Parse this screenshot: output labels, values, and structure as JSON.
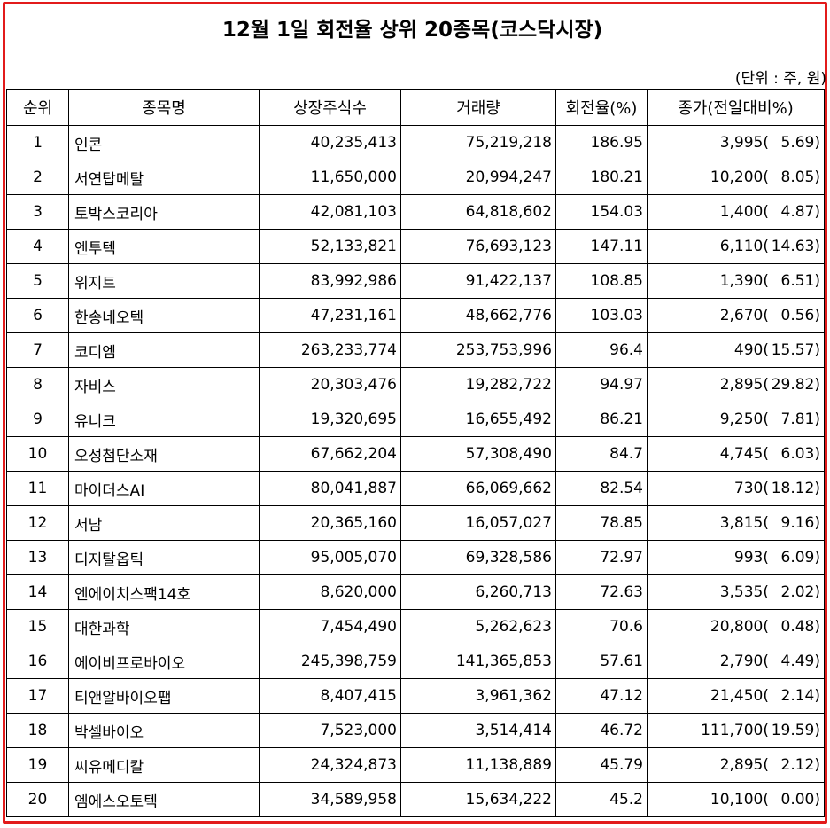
{
  "title": "12월 1일 회전율 상위 20종목(코스닥시장)",
  "unit_note": "(단위 : 주, 원)",
  "headers": [
    "순위",
    "종목명",
    "상장주식수",
    "거래량",
    "회전율(%)",
    "종가(전일대비%)"
  ],
  "rows": [
    {
      "rank": "1",
      "name": "인콘",
      "listed": "40,235,413",
      "volume": "75,219,218",
      "turnover": "186.95",
      "price": "3,995(",
      "change": "5.69)"
    },
    {
      "rank": "2",
      "name": "서연탑메탈",
      "listed": "11,650,000",
      "volume": "20,994,247",
      "turnover": "180.21",
      "price": "10,200(",
      "change": "8.05)"
    },
    {
      "rank": "3",
      "name": "토박스코리아",
      "listed": "42,081,103",
      "volume": "64,818,602",
      "turnover": "154.03",
      "price": "1,400(",
      "change": "4.87)"
    },
    {
      "rank": "4",
      "name": "엔투텍",
      "listed": "52,133,821",
      "volume": "76,693,123",
      "turnover": "147.11",
      "price": "6,110(",
      "change": "14.63)"
    },
    {
      "rank": "5",
      "name": "위지트",
      "listed": "83,992,986",
      "volume": "91,422,137",
      "turnover": "108.85",
      "price": "1,390(",
      "change": "6.51)"
    },
    {
      "rank": "6",
      "name": "한송네오텍",
      "listed": "47,231,161",
      "volume": "48,662,776",
      "turnover": "103.03",
      "price": "2,670(",
      "change": "0.56)"
    },
    {
      "rank": "7",
      "name": "코디엠",
      "listed": "263,233,774",
      "volume": "253,753,996",
      "turnover": "96.4",
      "price": "490(",
      "change": "15.57)"
    },
    {
      "rank": "8",
      "name": "자비스",
      "listed": "20,303,476",
      "volume": "19,282,722",
      "turnover": "94.97",
      "price": "2,895(",
      "change": "29.82)"
    },
    {
      "rank": "9",
      "name": "유니크",
      "listed": "19,320,695",
      "volume": "16,655,492",
      "turnover": "86.21",
      "price": "9,250(",
      "change": "7.81)"
    },
    {
      "rank": "10",
      "name": "오성첨단소재",
      "listed": "67,662,204",
      "volume": "57,308,490",
      "turnover": "84.7",
      "price": "4,745(",
      "change": "6.03)"
    },
    {
      "rank": "11",
      "name": "마이더스AI",
      "listed": "80,041,887",
      "volume": "66,069,662",
      "turnover": "82.54",
      "price": "730(",
      "change": "18.12)"
    },
    {
      "rank": "12",
      "name": "서남",
      "listed": "20,365,160",
      "volume": "16,057,027",
      "turnover": "78.85",
      "price": "3,815(",
      "change": "9.16)"
    },
    {
      "rank": "13",
      "name": "디지탈옵틱",
      "listed": "95,005,070",
      "volume": "69,328,586",
      "turnover": "72.97",
      "price": "993(",
      "change": "6.09)"
    },
    {
      "rank": "14",
      "name": "엔에이치스팩14호",
      "listed": "8,620,000",
      "volume": "6,260,713",
      "turnover": "72.63",
      "price": "3,535(",
      "change": "2.02)"
    },
    {
      "rank": "15",
      "name": "대한과학",
      "listed": "7,454,490",
      "volume": "5,262,623",
      "turnover": "70.6",
      "price": "20,800(",
      "change": "0.48)"
    },
    {
      "rank": "16",
      "name": "에이비프로바이오",
      "listed": "245,398,759",
      "volume": "141,365,853",
      "turnover": "57.61",
      "price": "2,790(",
      "change": "4.49)"
    },
    {
      "rank": "17",
      "name": "티앤알바이오팹",
      "listed": "8,407,415",
      "volume": "3,961,362",
      "turnover": "47.12",
      "price": "21,450(",
      "change": "2.14)"
    },
    {
      "rank": "18",
      "name": "박셀바이오",
      "listed": "7,523,000",
      "volume": "3,514,414",
      "turnover": "46.72",
      "price": "111,700(",
      "change": "19.59)"
    },
    {
      "rank": "19",
      "name": "씨유메디칼",
      "listed": "24,324,873",
      "volume": "11,138,889",
      "turnover": "45.79",
      "price": "2,895(",
      "change": "2.12)"
    },
    {
      "rank": "20",
      "name": "엠에스오토텍",
      "listed": "34,589,958",
      "volume": "15,634,222",
      "turnover": "45.2",
      "price": "10,100(",
      "change": "0.00)"
    }
  ]
}
